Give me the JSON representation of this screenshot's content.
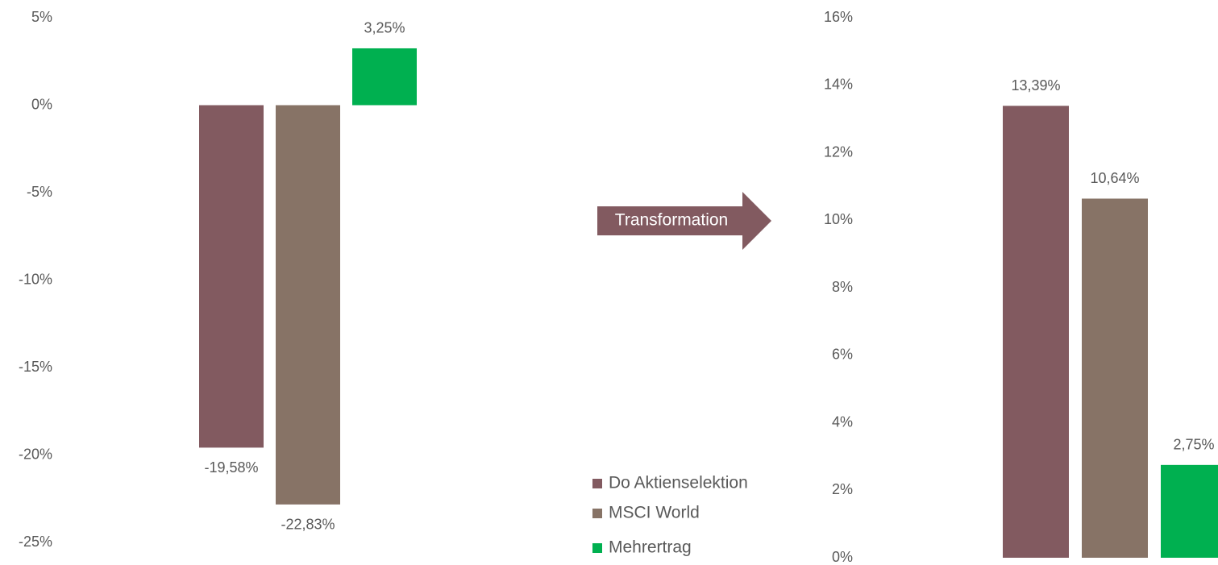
{
  "annotation": "Transformation",
  "chart_data": [
    {
      "type": "bar",
      "series": [
        {
          "name": "Do Aktienselektion",
          "color": "#825a60",
          "values": [
            -19.58
          ],
          "value_labels": [
            "-19,58%"
          ]
        },
        {
          "name": "MSCI World",
          "color": "#877366",
          "values": [
            -22.83
          ],
          "value_labels": [
            "-22,83%"
          ]
        },
        {
          "name": "Mehrertrag",
          "color": "#00b050",
          "values": [
            3.25
          ],
          "value_labels": [
            "3,25%"
          ]
        }
      ],
      "ylim": [
        -25,
        5
      ],
      "yticks": [
        {
          "value": 5,
          "label": "5%"
        },
        {
          "value": 0,
          "label": "0%"
        },
        {
          "value": -5,
          "label": "-5%"
        },
        {
          "value": -10,
          "label": "-10%"
        },
        {
          "value": -15,
          "label": "-15%"
        },
        {
          "value": -20,
          "label": "-20%"
        },
        {
          "value": -25,
          "label": "-25%"
        }
      ],
      "grid": false
    },
    {
      "type": "bar",
      "series": [
        {
          "color": "#825a60",
          "values": [
            13.39
          ],
          "value_labels": [
            "13,39%"
          ]
        },
        {
          "color": "#877366",
          "values": [
            10.64
          ],
          "value_labels": [
            "10,64%"
          ]
        },
        {
          "color": "#00b050",
          "values": [
            2.75
          ],
          "value_labels": [
            "2,75%"
          ]
        }
      ],
      "ylim": [
        0,
        16
      ],
      "yticks": [
        {
          "value": 16,
          "label": "16%"
        },
        {
          "value": 14,
          "label": "14%"
        },
        {
          "value": 12,
          "label": "12%"
        },
        {
          "value": 10,
          "label": "10%"
        },
        {
          "value": 8,
          "label": "8%"
        },
        {
          "value": 6,
          "label": "6%"
        },
        {
          "value": 4,
          "label": "4%"
        },
        {
          "value": 2,
          "label": "2%"
        },
        {
          "value": 0,
          "label": "0%"
        }
      ],
      "grid": false
    }
  ]
}
